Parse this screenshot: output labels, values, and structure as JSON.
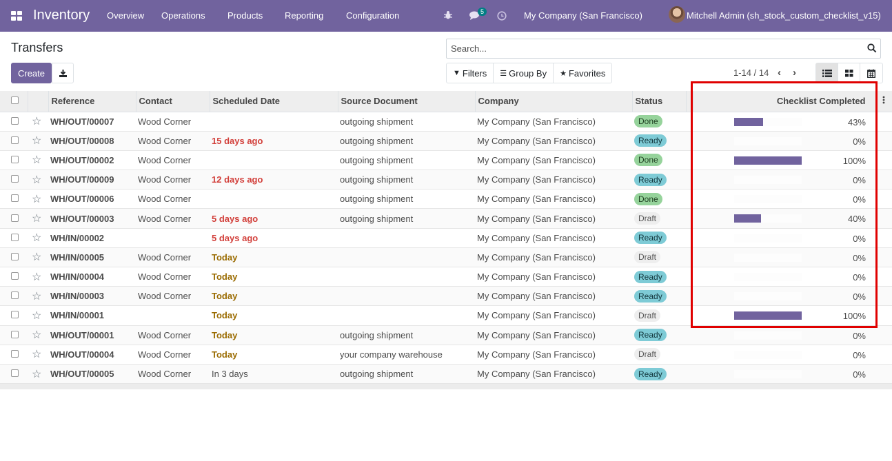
{
  "navbar": {
    "app_name": "Inventory",
    "menu": [
      "Overview",
      "Operations",
      "Products",
      "Reporting",
      "Configuration"
    ],
    "message_count": "5",
    "company": "My Company (San Francisco)",
    "user": "Mitchell Admin (sh_stock_custom_checklist_v15)",
    "icons": [
      "apps-icon",
      "bug-icon",
      "chat-icon",
      "clock-icon"
    ]
  },
  "control": {
    "title": "Transfers",
    "create_label": "Create",
    "search_placeholder": "Search...",
    "filters_label": "Filters",
    "groupby_label": "Group By",
    "favorites_label": "Favorites",
    "pager": "1-14 / 14"
  },
  "table": {
    "columns": [
      "Reference",
      "Contact",
      "Scheduled Date",
      "Source Document",
      "Company",
      "Status",
      "Checklist Completed"
    ],
    "rows": [
      {
        "ref": "WH/OUT/00007",
        "contact": "Wood Corner",
        "date": "",
        "date_style": "",
        "source": "outgoing shipment",
        "company": "My Company (San Francisco)",
        "status": "Done",
        "status_style": "done",
        "checklist": 43,
        "checklist_text": "43%"
      },
      {
        "ref": "WH/OUT/00008",
        "contact": "Wood Corner",
        "date": "15 days ago",
        "date_style": "late",
        "source": "outgoing shipment",
        "company": "My Company (San Francisco)",
        "status": "Ready",
        "status_style": "ready",
        "checklist": 0,
        "checklist_text": "0%"
      },
      {
        "ref": "WH/OUT/00002",
        "contact": "Wood Corner",
        "date": "",
        "date_style": "",
        "source": "outgoing shipment",
        "company": "My Company (San Francisco)",
        "status": "Done",
        "status_style": "done",
        "checklist": 100,
        "checklist_text": "100%"
      },
      {
        "ref": "WH/OUT/00009",
        "contact": "Wood Corner",
        "date": "12 days ago",
        "date_style": "late",
        "source": "outgoing shipment",
        "company": "My Company (San Francisco)",
        "status": "Ready",
        "status_style": "ready",
        "checklist": 0,
        "checklist_text": "0%"
      },
      {
        "ref": "WH/OUT/00006",
        "contact": "Wood Corner",
        "date": "",
        "date_style": "",
        "source": "outgoing shipment",
        "company": "My Company (San Francisco)",
        "status": "Done",
        "status_style": "done",
        "checklist": 0,
        "checklist_text": "0%"
      },
      {
        "ref": "WH/OUT/00003",
        "contact": "Wood Corner",
        "date": "5 days ago",
        "date_style": "late",
        "source": "outgoing shipment",
        "company": "My Company (San Francisco)",
        "status": "Draft",
        "status_style": "draft",
        "checklist": 40,
        "checklist_text": "40%"
      },
      {
        "ref": "WH/IN/00002",
        "contact": "",
        "date": "5 days ago",
        "date_style": "late",
        "source": "",
        "company": "My Company (San Francisco)",
        "status": "Ready",
        "status_style": "ready",
        "checklist": 0,
        "checklist_text": "0%"
      },
      {
        "ref": "WH/IN/00005",
        "contact": "Wood Corner",
        "date": "Today",
        "date_style": "today",
        "source": "",
        "company": "My Company (San Francisco)",
        "status": "Draft",
        "status_style": "draft",
        "checklist": 0,
        "checklist_text": "0%"
      },
      {
        "ref": "WH/IN/00004",
        "contact": "Wood Corner",
        "date": "Today",
        "date_style": "today",
        "source": "",
        "company": "My Company (San Francisco)",
        "status": "Ready",
        "status_style": "ready",
        "checklist": 0,
        "checklist_text": "0%"
      },
      {
        "ref": "WH/IN/00003",
        "contact": "Wood Corner",
        "date": "Today",
        "date_style": "today",
        "source": "",
        "company": "My Company (San Francisco)",
        "status": "Ready",
        "status_style": "ready",
        "checklist": 0,
        "checklist_text": "0%"
      },
      {
        "ref": "WH/IN/00001",
        "contact": "",
        "date": "Today",
        "date_style": "today",
        "source": "",
        "company": "My Company (San Francisco)",
        "status": "Draft",
        "status_style": "draft",
        "checklist": 100,
        "checklist_text": "100%"
      },
      {
        "ref": "WH/OUT/00001",
        "contact": "Wood Corner",
        "date": "Today",
        "date_style": "today",
        "source": "outgoing shipment",
        "company": "My Company (San Francisco)",
        "status": "Ready",
        "status_style": "ready",
        "checklist": 0,
        "checklist_text": "0%"
      },
      {
        "ref": "WH/OUT/00004",
        "contact": "Wood Corner",
        "date": "Today",
        "date_style": "today",
        "source": "your company warehouse",
        "company": "My Company (San Francisco)",
        "status": "Draft",
        "status_style": "draft",
        "checklist": 0,
        "checklist_text": "0%"
      },
      {
        "ref": "WH/OUT/00005",
        "contact": "Wood Corner",
        "date": "In 3 days",
        "date_style": "",
        "source": "outgoing shipment",
        "company": "My Company (San Francisco)",
        "status": "Ready",
        "status_style": "ready",
        "checklist": 0,
        "checklist_text": "0%"
      }
    ]
  },
  "colors": {
    "brand": "#71639e",
    "done": "#96d39b",
    "ready": "#7ecbd6",
    "late": "#d23f3a",
    "today": "#9a6b00",
    "highlight": "#e00000"
  }
}
